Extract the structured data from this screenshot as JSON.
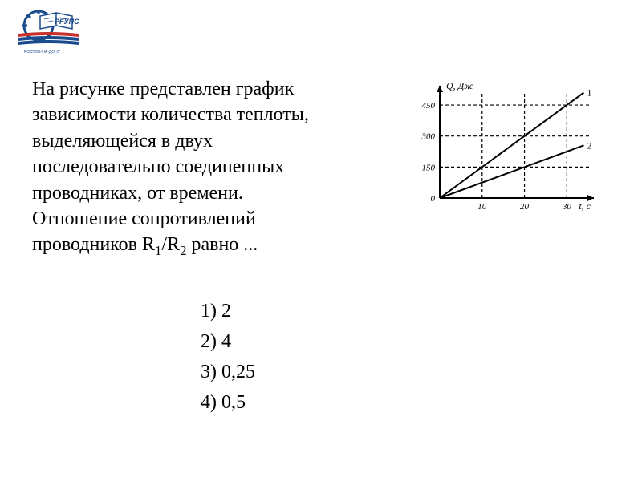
{
  "logo": {
    "text": "РГУПС",
    "gear_color": "#1a4b8c",
    "book_color": "#ffffff",
    "book_outline": "#1a4b8c",
    "stripes": [
      "#c9302c",
      "#1a4b8c",
      "#1a4b8c"
    ]
  },
  "question": {
    "line1": "На рисунке представлен график",
    "line2": "зависимости количества теплоты,",
    "line3": "выделяющейся в двух",
    "line4": "последовательно соединенных",
    "line5": "проводниках, от времени.",
    "line6": "Отношение сопротивлений",
    "line7_prefix": "проводников R",
    "line7_sub1": "1",
    "line7_mid": "/R",
    "line7_sub2": "2",
    "line7_suffix": " равно ..."
  },
  "answers": {
    "a1": "1) 2",
    "a2": "2) 4",
    "a3": "3) 0,25",
    "a4": "4) 0,5"
  },
  "chart": {
    "type": "line",
    "background_color": "#ffffff",
    "axis_color": "#000000",
    "line_color": "#000000",
    "grid_dash": "4,3",
    "y_label": "Q, Дж",
    "x_label": "t, с",
    "y_ticks": [
      0,
      150,
      300,
      450
    ],
    "x_ticks": [
      0,
      10,
      20,
      30
    ],
    "ylim": [
      0,
      520
    ],
    "xlim": [
      0,
      36
    ],
    "label_fontsize": 12,
    "tick_fontsize": 10,
    "series": [
      {
        "name": "1",
        "label": "1",
        "points": [
          [
            0,
            0
          ],
          [
            30,
            450
          ],
          [
            34,
            510
          ]
        ],
        "color": "#000000",
        "stroke_width": 2
      },
      {
        "name": "2",
        "label": "2",
        "points": [
          [
            0,
            0
          ],
          [
            30,
            225
          ],
          [
            34,
            255
          ]
        ],
        "color": "#000000",
        "stroke_width": 2
      }
    ],
    "line_width": 2
  }
}
